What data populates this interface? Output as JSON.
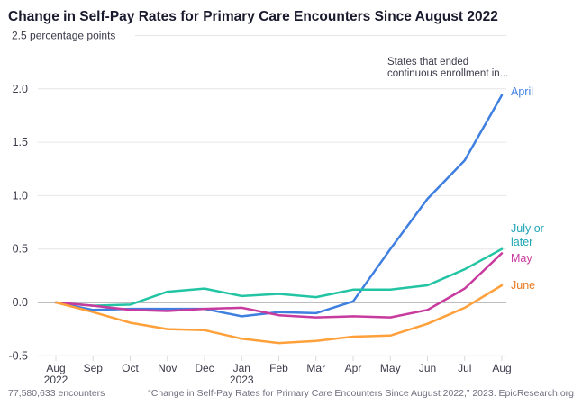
{
  "chart_data": {
    "type": "line",
    "title": "Change in Self-Pay Rates for Primary Care Encounters Since August 2022",
    "ylabel": "percentage points",
    "ylim": [
      -0.5,
      2.5
    ],
    "yticks": [
      -0.5,
      0.0,
      0.5,
      1.0,
      1.5,
      2.0,
      2.5
    ],
    "ytick_labels": [
      "-0.5",
      "0.0",
      "0.5",
      "1.0",
      "1.5",
      "2.0",
      "2.5 percentage points"
    ],
    "grid": true,
    "x": [
      "Aug",
      "Sep",
      "Oct",
      "Nov",
      "Dec",
      "Jan",
      "Feb",
      "Mar",
      "Apr",
      "May",
      "Jun",
      "Jul",
      "Aug"
    ],
    "x_year_labels": {
      "0": "2022",
      "5": "2023"
    },
    "legend_title": "States that ended continuous enrollment in...",
    "legend_title_lines": [
      "States that ended",
      "continuous enrollment in..."
    ],
    "legend_placement": "right-inline",
    "series": [
      {
        "name": "April",
        "label_lines": [
          "April"
        ],
        "color": "#3f7fe0",
        "values": [
          0,
          -0.07,
          -0.06,
          -0.06,
          -0.06,
          -0.13,
          -0.09,
          -0.1,
          0.01,
          0.5,
          0.97,
          1.33,
          1.94
        ]
      },
      {
        "name": "July or later",
        "label_lines": [
          "July or",
          "later"
        ],
        "color": "#22c4a4",
        "label_color": "#1fa5b5",
        "values": [
          0,
          -0.03,
          -0.02,
          0.1,
          0.13,
          0.06,
          0.08,
          0.05,
          0.12,
          0.12,
          0.16,
          0.31,
          0.5
        ]
      },
      {
        "name": "May",
        "label_lines": [
          "May"
        ],
        "color": "#c73a9e",
        "values": [
          0,
          -0.03,
          -0.07,
          -0.08,
          -0.06,
          -0.05,
          -0.12,
          -0.14,
          -0.13,
          -0.14,
          -0.07,
          0.13,
          0.46
        ]
      },
      {
        "name": "June",
        "label_lines": [
          "June"
        ],
        "color": "#ffa03a",
        "label_color": "#e8781e",
        "values": [
          0,
          -0.09,
          -0.19,
          -0.25,
          -0.26,
          -0.34,
          -0.38,
          -0.36,
          -0.32,
          -0.31,
          -0.2,
          -0.05,
          0.16
        ]
      }
    ]
  },
  "footer": {
    "left": "77,580,633 encounters",
    "right": "“Change in Self-Pay Rates for Primary Care Encounters Since August 2022,” 2023. EpicResearch.org"
  }
}
